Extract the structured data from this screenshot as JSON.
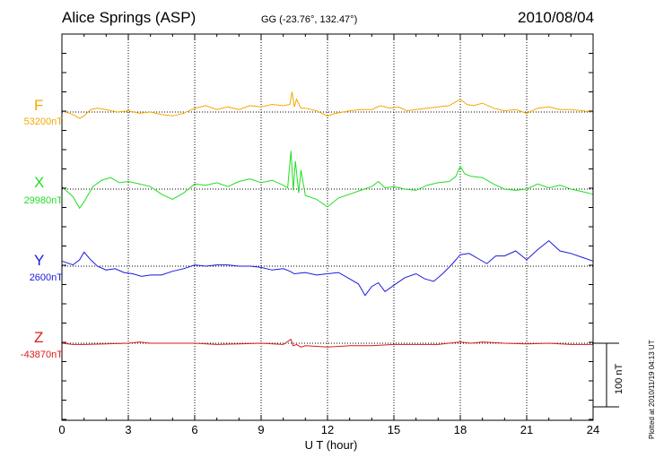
{
  "header": {
    "station": "Alice Springs (ASP)",
    "coords": "GG (-23.76°, 132.47°)",
    "date": "2010/08/04"
  },
  "plotted_note": "Plotted at 2010/11/19 04:13 UT",
  "scale_bar_label": "100 nT",
  "chart_data": {
    "type": "line",
    "title": "Alice Springs (ASP)",
    "xlabel": "U T (hour)",
    "ylabel": "",
    "xlim": [
      0,
      24
    ],
    "x_ticks": [
      0,
      3,
      6,
      9,
      12,
      15,
      18,
      21,
      24
    ],
    "grid": true,
    "scale_bar_nT": 100,
    "series": [
      {
        "name": "F",
        "baseline_label": "53200nT",
        "baseline_nT": 53200,
        "color": "#f5a800",
        "points": [
          [
            0,
            2
          ],
          [
            0.5,
            -4
          ],
          [
            0.8,
            -10
          ],
          [
            1.0,
            -6
          ],
          [
            1.3,
            4
          ],
          [
            1.6,
            6
          ],
          [
            2.0,
            4
          ],
          [
            2.5,
            0
          ],
          [
            3.0,
            2
          ],
          [
            3.5,
            -2
          ],
          [
            4.0,
            0
          ],
          [
            4.5,
            -4
          ],
          [
            5.0,
            -6
          ],
          [
            5.5,
            -2
          ],
          [
            6.0,
            6
          ],
          [
            6.5,
            10
          ],
          [
            7.0,
            4
          ],
          [
            7.5,
            8
          ],
          [
            8.0,
            4
          ],
          [
            8.5,
            10
          ],
          [
            9.0,
            8
          ],
          [
            9.5,
            12
          ],
          [
            10.0,
            10
          ],
          [
            10.3,
            12
          ],
          [
            10.4,
            32
          ],
          [
            10.5,
            8
          ],
          [
            10.6,
            20
          ],
          [
            10.8,
            6
          ],
          [
            11.0,
            6
          ],
          [
            11.5,
            2
          ],
          [
            12.0,
            -6
          ],
          [
            12.4,
            -2
          ],
          [
            13.0,
            2
          ],
          [
            13.5,
            4
          ],
          [
            14.0,
            4
          ],
          [
            14.4,
            10
          ],
          [
            14.8,
            6
          ],
          [
            15.2,
            8
          ],
          [
            15.6,
            2
          ],
          [
            16.0,
            4
          ],
          [
            16.5,
            6
          ],
          [
            17.0,
            8
          ],
          [
            17.5,
            10
          ],
          [
            18.0,
            20
          ],
          [
            18.3,
            12
          ],
          [
            18.6,
            10
          ],
          [
            19.0,
            14
          ],
          [
            19.5,
            6
          ],
          [
            20.0,
            2
          ],
          [
            20.5,
            4
          ],
          [
            21.0,
            -2
          ],
          [
            21.5,
            6
          ],
          [
            22.0,
            8
          ],
          [
            22.5,
            4
          ],
          [
            23.0,
            4
          ],
          [
            23.5,
            2
          ],
          [
            24.0,
            0
          ]
        ]
      },
      {
        "name": "X",
        "baseline_label": "29980nT",
        "baseline_nT": 29980,
        "color": "#22dd22",
        "points": [
          [
            0,
            4
          ],
          [
            0.5,
            -12
          ],
          [
            0.8,
            -30
          ],
          [
            1.0,
            -20
          ],
          [
            1.4,
            4
          ],
          [
            1.8,
            14
          ],
          [
            2.2,
            18
          ],
          [
            2.6,
            10
          ],
          [
            3.0,
            12
          ],
          [
            3.5,
            8
          ],
          [
            4.0,
            4
          ],
          [
            4.5,
            -8
          ],
          [
            5.0,
            -16
          ],
          [
            5.5,
            -6
          ],
          [
            6.0,
            8
          ],
          [
            6.5,
            6
          ],
          [
            7.0,
            10
          ],
          [
            7.5,
            4
          ],
          [
            8.0,
            12
          ],
          [
            8.5,
            16
          ],
          [
            9.0,
            10
          ],
          [
            9.5,
            14
          ],
          [
            10.0,
            6
          ],
          [
            10.2,
            2
          ],
          [
            10.35,
            60
          ],
          [
            10.45,
            -2
          ],
          [
            10.55,
            44
          ],
          [
            10.7,
            -6
          ],
          [
            10.8,
            30
          ],
          [
            11.0,
            -10
          ],
          [
            11.5,
            -16
          ],
          [
            12.0,
            -28
          ],
          [
            12.5,
            -14
          ],
          [
            13.0,
            -8
          ],
          [
            13.5,
            -2
          ],
          [
            14.0,
            4
          ],
          [
            14.3,
            12
          ],
          [
            14.6,
            2
          ],
          [
            15.0,
            4
          ],
          [
            15.5,
            0
          ],
          [
            16.0,
            -2
          ],
          [
            16.5,
            6
          ],
          [
            17.0,
            10
          ],
          [
            17.5,
            12
          ],
          [
            17.8,
            20
          ],
          [
            18.0,
            36
          ],
          [
            18.2,
            24
          ],
          [
            18.5,
            20
          ],
          [
            19.0,
            18
          ],
          [
            19.5,
            8
          ],
          [
            20.0,
            0
          ],
          [
            20.5,
            -2
          ],
          [
            21.0,
            0
          ],
          [
            21.5,
            8
          ],
          [
            22.0,
            2
          ],
          [
            22.5,
            6
          ],
          [
            23.0,
            0
          ],
          [
            23.5,
            -4
          ],
          [
            24.0,
            -8
          ]
        ]
      },
      {
        "name": "Y",
        "baseline_label": "2600nT",
        "baseline_nT": 2600,
        "color": "#1a1adc",
        "points": [
          [
            0,
            8
          ],
          [
            0.5,
            2
          ],
          [
            0.8,
            10
          ],
          [
            1.0,
            22
          ],
          [
            1.3,
            10
          ],
          [
            1.6,
            0
          ],
          [
            2.0,
            -6
          ],
          [
            2.4,
            -4
          ],
          [
            2.8,
            -10
          ],
          [
            3.2,
            -12
          ],
          [
            3.6,
            -16
          ],
          [
            4.0,
            -14
          ],
          [
            4.5,
            -14
          ],
          [
            5.0,
            -8
          ],
          [
            5.5,
            -4
          ],
          [
            6.0,
            2
          ],
          [
            6.5,
            0
          ],
          [
            7.0,
            2
          ],
          [
            7.5,
            2
          ],
          [
            8.0,
            0
          ],
          [
            8.5,
            0
          ],
          [
            9.0,
            -2
          ],
          [
            9.5,
            -6
          ],
          [
            10.0,
            -4
          ],
          [
            10.3,
            -8
          ],
          [
            10.5,
            -12
          ],
          [
            11.0,
            -10
          ],
          [
            11.5,
            -14
          ],
          [
            12.0,
            -12
          ],
          [
            12.5,
            -10
          ],
          [
            13.0,
            -20
          ],
          [
            13.4,
            -28
          ],
          [
            13.7,
            -46
          ],
          [
            14.0,
            -32
          ],
          [
            14.3,
            -26
          ],
          [
            14.6,
            -40
          ],
          [
            15.0,
            -30
          ],
          [
            15.5,
            -18
          ],
          [
            16.0,
            -12
          ],
          [
            16.4,
            -20
          ],
          [
            16.8,
            -24
          ],
          [
            17.2,
            -12
          ],
          [
            17.6,
            2
          ],
          [
            18.0,
            18
          ],
          [
            18.4,
            20
          ],
          [
            18.8,
            12
          ],
          [
            19.2,
            4
          ],
          [
            19.6,
            16
          ],
          [
            20.0,
            16
          ],
          [
            20.5,
            24
          ],
          [
            21.0,
            10
          ],
          [
            21.5,
            26
          ],
          [
            22.0,
            40
          ],
          [
            22.5,
            24
          ],
          [
            23.0,
            20
          ],
          [
            23.5,
            14
          ],
          [
            24.0,
            8
          ]
        ]
      },
      {
        "name": "Z",
        "baseline_label": "-43870nT",
        "baseline_nT": -43870,
        "color": "#dd1a1a",
        "points": [
          [
            0,
            0
          ],
          [
            0.5,
            -2
          ],
          [
            1.0,
            -2
          ],
          [
            2.0,
            -1
          ],
          [
            3.0,
            0
          ],
          [
            3.5,
            2
          ],
          [
            4.0,
            0
          ],
          [
            5.0,
            0
          ],
          [
            6.0,
            0
          ],
          [
            7.0,
            -2
          ],
          [
            8.0,
            -1
          ],
          [
            9.0,
            0
          ],
          [
            10.0,
            -2
          ],
          [
            10.35,
            6
          ],
          [
            10.45,
            -4
          ],
          [
            10.6,
            -2
          ],
          [
            10.8,
            -6
          ],
          [
            11.0,
            -4
          ],
          [
            12.0,
            -6
          ],
          [
            13.0,
            -4
          ],
          [
            14.0,
            -4
          ],
          [
            15.0,
            -2
          ],
          [
            16.0,
            -2
          ],
          [
            17.0,
            -2
          ],
          [
            18.0,
            2
          ],
          [
            18.5,
            0
          ],
          [
            19.0,
            2
          ],
          [
            20.0,
            0
          ],
          [
            21.0,
            -1
          ],
          [
            22.0,
            0
          ],
          [
            23.0,
            -2
          ],
          [
            24.0,
            -2
          ]
        ]
      }
    ]
  }
}
